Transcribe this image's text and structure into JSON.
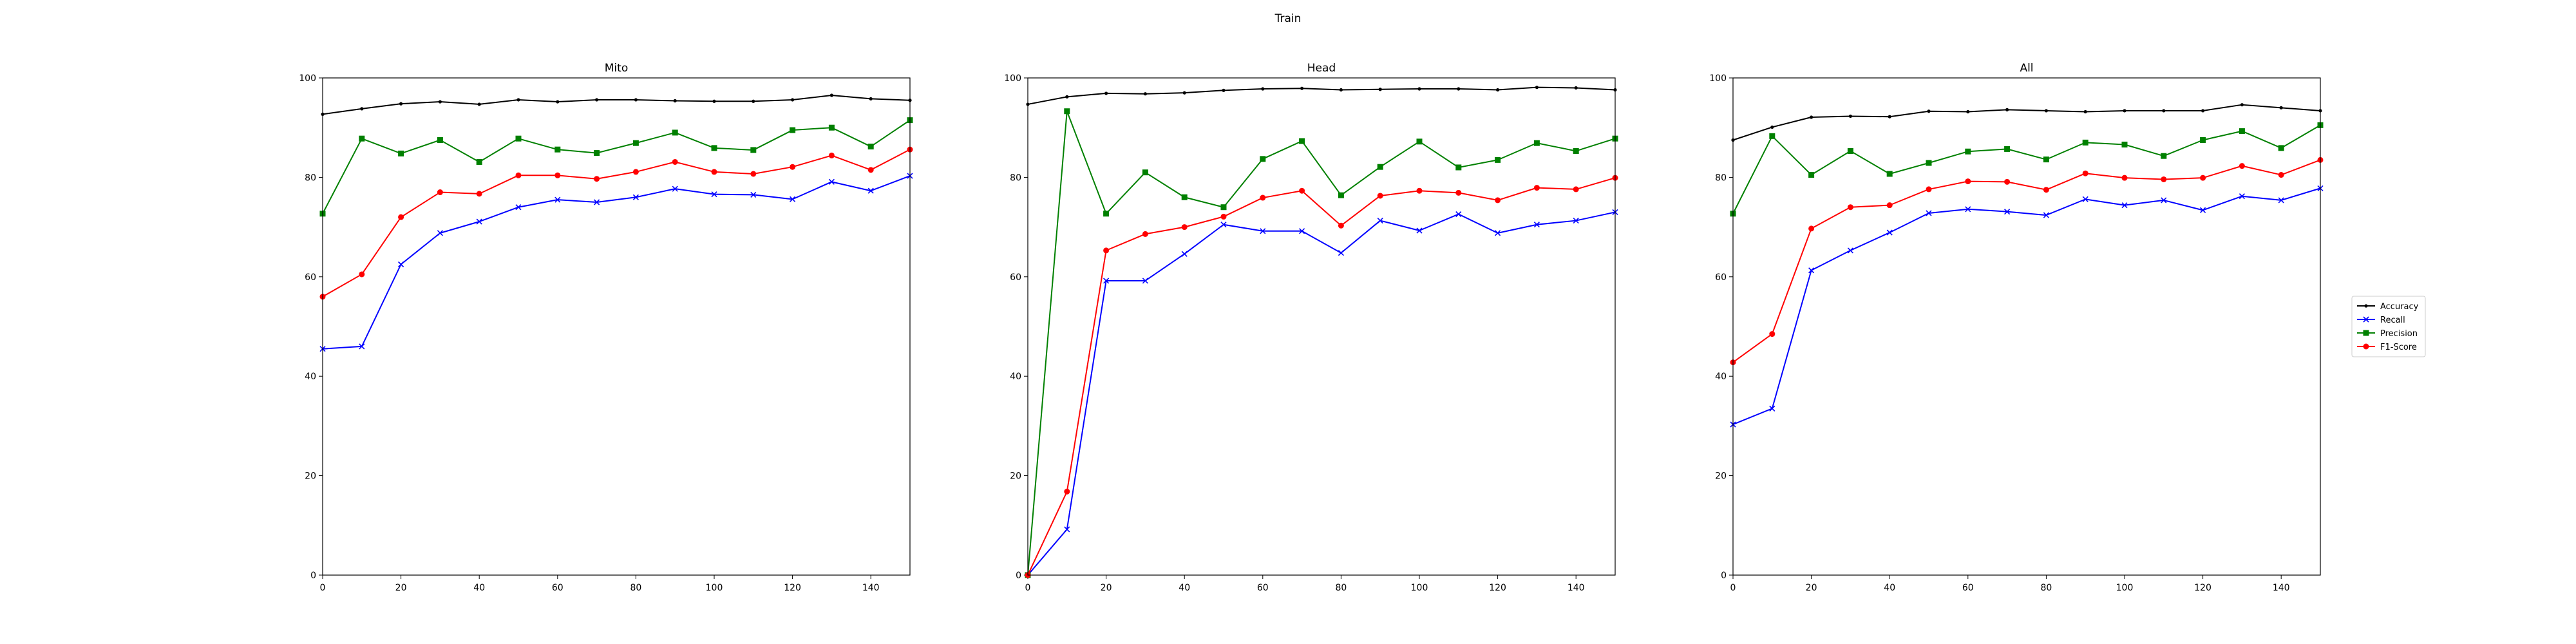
{
  "suptitle": "Train",
  "chart_data": [
    {
      "type": "line",
      "title": "Mito",
      "xlabel": "",
      "ylabel": "",
      "xlim": [
        0,
        150
      ],
      "ylim": [
        0,
        100
      ],
      "xticks": [
        0,
        20,
        40,
        60,
        80,
        100,
        120,
        140
      ],
      "yticks": [
        0,
        20,
        40,
        60,
        80,
        100
      ],
      "grid": false,
      "x": [
        0,
        10,
        20,
        30,
        40,
        50,
        60,
        70,
        80,
        90,
        100,
        110,
        120,
        130,
        140,
        150
      ],
      "series": [
        {
          "name": "Accuracy",
          "color": "#000000",
          "marker": "dot",
          "values": [
            92.7,
            93.8,
            94.8,
            95.2,
            94.7,
            95.6,
            95.2,
            95.6,
            95.6,
            95.4,
            95.3,
            95.3,
            95.6,
            96.5,
            95.8,
            95.5
          ]
        },
        {
          "name": "Recall",
          "color": "#0000ff",
          "marker": "x",
          "values": [
            45.5,
            46.0,
            62.5,
            68.8,
            71.1,
            74.0,
            75.5,
            75.0,
            76.0,
            77.7,
            76.6,
            76.5,
            75.6,
            79.1,
            77.3,
            80.3
          ]
        },
        {
          "name": "Precision",
          "color": "#008000",
          "marker": "square",
          "values": [
            72.7,
            87.8,
            84.8,
            87.5,
            83.1,
            87.8,
            85.6,
            84.9,
            86.9,
            89.0,
            85.9,
            85.5,
            89.5,
            90.0,
            86.2,
            91.5
          ]
        },
        {
          "name": "F1-Score",
          "color": "#ff0000",
          "marker": "circle",
          "values": [
            56.0,
            60.5,
            72.0,
            77.0,
            76.7,
            80.4,
            80.4,
            79.7,
            81.1,
            83.1,
            81.1,
            80.7,
            82.1,
            84.4,
            81.5,
            85.6
          ]
        }
      ]
    },
    {
      "type": "line",
      "title": "Head",
      "xlabel": "",
      "ylabel": "",
      "xlim": [
        0,
        150
      ],
      "ylim": [
        0,
        100
      ],
      "xticks": [
        0,
        20,
        40,
        60,
        80,
        100,
        120,
        140
      ],
      "yticks": [
        0,
        20,
        40,
        60,
        80,
        100
      ],
      "grid": false,
      "x": [
        0,
        10,
        20,
        30,
        40,
        50,
        60,
        70,
        80,
        90,
        100,
        110,
        120,
        130,
        140,
        150
      ],
      "series": [
        {
          "name": "Accuracy",
          "color": "#000000",
          "marker": "dot",
          "values": [
            94.7,
            96.2,
            96.9,
            96.8,
            97.0,
            97.5,
            97.8,
            97.9,
            97.6,
            97.7,
            97.8,
            97.8,
            97.6,
            98.1,
            98.0,
            97.6
          ]
        },
        {
          "name": "Recall",
          "color": "#0000ff",
          "marker": "x",
          "values": [
            0.0,
            9.2,
            59.2,
            59.2,
            64.6,
            70.5,
            69.2,
            69.2,
            64.8,
            71.3,
            69.3,
            72.6,
            68.8,
            70.5,
            71.3,
            73.0
          ]
        },
        {
          "name": "Precision",
          "color": "#008000",
          "marker": "square",
          "values": [
            0.0,
            93.3,
            72.7,
            81.0,
            76.0,
            74.0,
            83.7,
            87.3,
            76.4,
            82.1,
            87.2,
            82.0,
            83.5,
            86.9,
            85.3,
            87.8
          ]
        },
        {
          "name": "F1-Score",
          "color": "#ff0000",
          "marker": "circle",
          "values": [
            0.0,
            16.8,
            65.3,
            68.6,
            70.0,
            72.1,
            75.9,
            77.3,
            70.3,
            76.3,
            77.3,
            76.9,
            75.4,
            77.9,
            77.6,
            79.9
          ]
        }
      ]
    },
    {
      "type": "line",
      "title": "All",
      "xlabel": "",
      "ylabel": "",
      "xlim": [
        0,
        150
      ],
      "ylim": [
        0,
        100
      ],
      "xticks": [
        0,
        20,
        40,
        60,
        80,
        100,
        120,
        140
      ],
      "yticks": [
        0,
        20,
        40,
        60,
        80,
        100
      ],
      "grid": false,
      "x": [
        0,
        10,
        20,
        30,
        40,
        50,
        60,
        70,
        80,
        90,
        100,
        110,
        120,
        130,
        140,
        150
      ],
      "series": [
        {
          "name": "Accuracy",
          "color": "#000000",
          "marker": "dot",
          "values": [
            87.5,
            90.1,
            92.1,
            92.3,
            92.2,
            93.3,
            93.2,
            93.6,
            93.4,
            93.2,
            93.4,
            93.4,
            93.4,
            94.6,
            94.0,
            93.4
          ]
        },
        {
          "name": "Recall",
          "color": "#0000ff",
          "marker": "x",
          "values": [
            30.3,
            33.5,
            61.3,
            65.3,
            68.9,
            72.8,
            73.6,
            73.1,
            72.4,
            75.6,
            74.4,
            75.4,
            73.4,
            76.2,
            75.4,
            77.8
          ]
        },
        {
          "name": "Precision",
          "color": "#008000",
          "marker": "square",
          "values": [
            72.7,
            88.3,
            80.5,
            85.3,
            80.7,
            82.9,
            85.2,
            85.7,
            83.6,
            87.0,
            86.6,
            84.3,
            87.5,
            89.3,
            85.9,
            90.5
          ]
        },
        {
          "name": "F1-Score",
          "color": "#ff0000",
          "marker": "circle",
          "values": [
            42.8,
            48.5,
            69.7,
            74.0,
            74.4,
            77.6,
            79.2,
            79.1,
            77.5,
            80.8,
            79.9,
            79.6,
            79.9,
            82.3,
            80.5,
            83.5
          ]
        }
      ]
    }
  ],
  "legend": {
    "placement": "right",
    "entries": [
      {
        "label": "Accuracy",
        "color": "#000000",
        "marker": "dot"
      },
      {
        "label": "Recall",
        "color": "#0000ff",
        "marker": "x"
      },
      {
        "label": "Precision",
        "color": "#008000",
        "marker": "square"
      },
      {
        "label": "F1-Score",
        "color": "#ff0000",
        "marker": "circle"
      }
    ]
  }
}
